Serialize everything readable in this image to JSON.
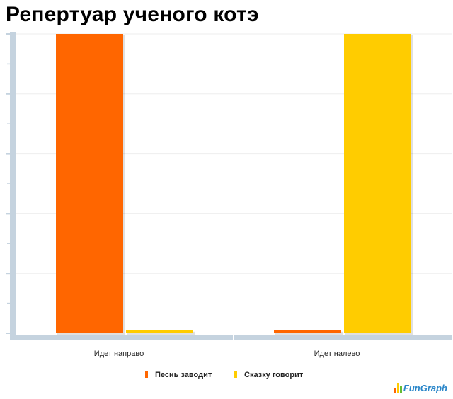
{
  "chart_data": {
    "type": "bar",
    "title": "Репертуар ученого котэ",
    "categories": [
      "Идет направо",
      "Идет налево"
    ],
    "series": [
      {
        "name": "Песнь заводит",
        "color": "#ff6600",
        "values": [
          100,
          1
        ]
      },
      {
        "name": "Сказку говорит",
        "color": "#ffcc00",
        "values": [
          1,
          100
        ]
      }
    ],
    "ylim": [
      0,
      100
    ],
    "grid": true,
    "legend_position": "bottom",
    "xlabel": "",
    "ylabel": ""
  },
  "brand": {
    "text": "FunGraph",
    "icon": "bar-chart-logo-icon"
  },
  "colors": {
    "axis": "#c5d3df",
    "grid": "#eeeeee"
  }
}
